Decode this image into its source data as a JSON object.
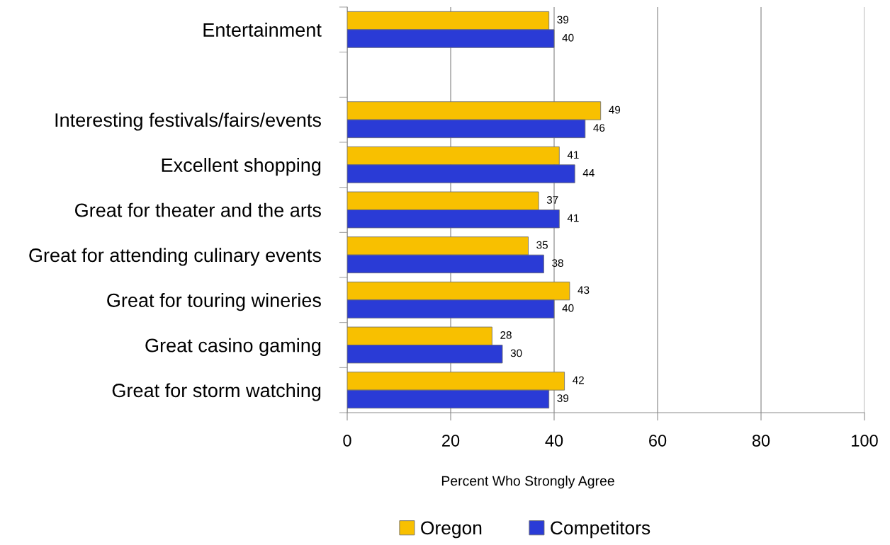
{
  "chart_data": {
    "type": "bar",
    "orientation": "horizontal",
    "xlabel": "Percent Who Strongly Agree",
    "categories": [
      "Entertainment",
      null,
      "Interesting festivals/fairs/events",
      "Excellent shopping",
      "Great for theater and the arts",
      "Great for attending culinary events",
      "Great for touring wineries",
      "Great casino gaming",
      "Great for storm watching"
    ],
    "series": [
      {
        "name": "Oregon",
        "color": "#f8c000",
        "values": [
          39,
          null,
          49,
          41,
          37,
          35,
          43,
          28,
          42
        ]
      },
      {
        "name": "Competitors",
        "color": "#2a3bd6",
        "values": [
          40,
          null,
          46,
          44,
          41,
          38,
          40,
          30,
          39
        ]
      }
    ],
    "xlim": [
      0,
      100
    ],
    "xticks": [
      0,
      20,
      40,
      60,
      80,
      100
    ],
    "grid": "x",
    "legend": "bottom",
    "data_labels": true
  }
}
